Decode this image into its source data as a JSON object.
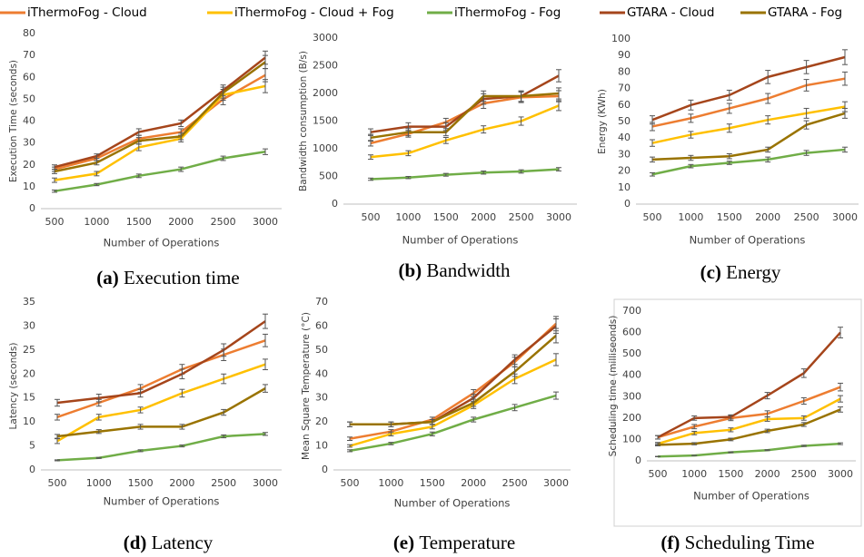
{
  "legend": [
    {
      "name": "iThermoFog - Cloud",
      "color": "#ed7d31"
    },
    {
      "name": "iThermoFog - Cloud + Fog",
      "color": "#ffc000"
    },
    {
      "name": "iThermoFog - Fog",
      "color": "#70ad47"
    },
    {
      "name": "GTARA - Cloud",
      "color": "#a5451b"
    },
    {
      "name": "GTARA - Fog",
      "color": "#997300"
    }
  ],
  "chart_data": [
    {
      "type": "line",
      "label": "(a)",
      "caption": "Execution time",
      "x_label": "Number of Operations",
      "y_label": "Execution Time (seconds)",
      "categories": [
        "500",
        "1000",
        "1500",
        "2000",
        "2500",
        "3000"
      ],
      "ylim": [
        0,
        80
      ],
      "yticks": [
        0,
        10,
        20,
        30,
        40,
        50,
        60,
        70,
        80
      ],
      "series": [
        {
          "values": [
            18,
            23,
            32,
            35,
            50,
            61
          ],
          "errors": [
            1,
            1,
            1.5,
            1.5,
            2.5,
            3
          ]
        },
        {
          "values": [
            13,
            16,
            28,
            32,
            52,
            56
          ],
          "errors": [
            1,
            1,
            1.5,
            1.5,
            2.5,
            3
          ]
        },
        {
          "values": [
            8,
            11,
            15,
            18,
            23,
            26
          ],
          "errors": [
            0.5,
            0.5,
            0.8,
            1,
            1,
            1.3
          ]
        },
        {
          "values": [
            19,
            24,
            35,
            39,
            54,
            69
          ],
          "errors": [
            1,
            1,
            1.5,
            1.5,
            2.5,
            3
          ]
        },
        {
          "values": [
            17,
            21,
            31,
            33,
            53,
            67
          ],
          "errors": [
            1,
            1,
            1.5,
            1.5,
            2.5,
            3
          ]
        }
      ]
    },
    {
      "type": "line",
      "label": "(b)",
      "caption": "Bandwidth",
      "x_label": "Number of Operations",
      "y_label": "Bandwidth consumption (B/s)",
      "categories": [
        "500",
        "1000",
        "1500",
        "2000",
        "2500",
        "3000"
      ],
      "ylim": [
        0,
        3000
      ],
      "yticks": [
        0,
        500,
        1000,
        1500,
        2000,
        2500,
        3000
      ],
      "series": [
        {
          "values": [
            1100,
            1270,
            1480,
            1820,
            1930,
            1950
          ],
          "errors": [
            50,
            60,
            70,
            90,
            95,
            100
          ]
        },
        {
          "values": [
            850,
            920,
            1150,
            1350,
            1500,
            1780
          ],
          "errors": [
            40,
            45,
            55,
            65,
            75,
            90
          ]
        },
        {
          "values": [
            450,
            480,
            530,
            570,
            590,
            630
          ],
          "errors": [
            20,
            20,
            25,
            28,
            30,
            30
          ]
        },
        {
          "values": [
            1300,
            1400,
            1400,
            1900,
            1950,
            2320
          ],
          "errors": [
            60,
            70,
            70,
            95,
            95,
            110
          ]
        },
        {
          "values": [
            1200,
            1300,
            1300,
            1950,
            1950,
            2000
          ],
          "errors": [
            60,
            65,
            65,
            95,
            95,
            100
          ]
        }
      ]
    },
    {
      "type": "line",
      "label": "(c)",
      "caption": "Energy",
      "x_label": "Number of Operations",
      "y_label": "Energy (KWh)",
      "categories": [
        "500",
        "1000",
        "1500",
        "2000",
        "2500",
        "3000"
      ],
      "ylim": [
        0,
        100
      ],
      "yticks": [
        0,
        10,
        20,
        30,
        40,
        50,
        60,
        70,
        80,
        90,
        100
      ],
      "series": [
        {
          "values": [
            47,
            52,
            58,
            64,
            72,
            76
          ],
          "errors": [
            2.5,
            2.5,
            3,
            3,
            3.5,
            4
          ]
        },
        {
          "values": [
            37,
            42,
            46,
            51,
            55,
            59
          ],
          "errors": [
            2,
            2,
            2.5,
            2.5,
            3,
            3
          ]
        },
        {
          "values": [
            18,
            23,
            25,
            27,
            31,
            33
          ],
          "errors": [
            1,
            1,
            1,
            1.5,
            1.5,
            1.5
          ]
        },
        {
          "values": [
            51,
            60,
            66,
            77,
            83,
            89
          ],
          "errors": [
            2.5,
            3,
            3,
            4,
            4,
            4.5
          ]
        },
        {
          "values": [
            27,
            28,
            29,
            33,
            48,
            55
          ],
          "errors": [
            1.5,
            1.5,
            1.5,
            1.5,
            2.5,
            3
          ]
        }
      ]
    },
    {
      "type": "line",
      "label": "(d)",
      "caption": "Latency",
      "x_label": "Number of Operations",
      "y_label": "Latency (seconds)",
      "categories": [
        "500",
        "1000",
        "1500",
        "2000",
        "2500",
        "3000"
      ],
      "ylim": [
        0,
        35
      ],
      "yticks": [
        0,
        5,
        10,
        15,
        20,
        25,
        30,
        35
      ],
      "series": [
        {
          "values": [
            11,
            14,
            17,
            21,
            24,
            27
          ],
          "errors": [
            0.6,
            0.7,
            0.8,
            1,
            1.2,
            1.3
          ]
        },
        {
          "values": [
            6,
            11,
            12.5,
            16,
            19,
            22
          ],
          "errors": [
            0.5,
            0.6,
            0.6,
            0.8,
            1,
            1.1
          ]
        },
        {
          "values": [
            2,
            2.5,
            4,
            5,
            7,
            7.5
          ],
          "errors": [
            0.1,
            0.1,
            0.2,
            0.2,
            0.3,
            0.3
          ]
        },
        {
          "values": [
            14,
            15,
            16,
            20,
            25,
            31
          ],
          "errors": [
            0.7,
            0.8,
            0.8,
            1,
            1.3,
            1.5
          ]
        },
        {
          "values": [
            7,
            8,
            9,
            9,
            12,
            17
          ],
          "errors": [
            0.4,
            0.4,
            0.5,
            0.5,
            0.6,
            0.8
          ]
        }
      ]
    },
    {
      "type": "line",
      "label": "(e)",
      "caption": "Temperature",
      "x_label": "Number of Operations",
      "y_label": "Mean Square Temperature (°C)",
      "categories": [
        "500",
        "1000",
        "1500",
        "2000",
        "2500",
        "3000"
      ],
      "ylim": [
        0,
        70
      ],
      "yticks": [
        0,
        10,
        20,
        30,
        40,
        50,
        60,
        70
      ],
      "series": [
        {
          "values": [
            13,
            16,
            21,
            32,
            45,
            61
          ],
          "errors": [
            0.7,
            0.8,
            1,
            1.5,
            2,
            3
          ]
        },
        {
          "values": [
            10,
            15,
            18,
            27,
            38,
            46
          ],
          "errors": [
            0.5,
            0.8,
            0.9,
            1.4,
            2,
            2.5
          ]
        },
        {
          "values": [
            8,
            11,
            15,
            21,
            26,
            31
          ],
          "errors": [
            0.4,
            0.5,
            0.8,
            1,
            1.3,
            1.5
          ]
        },
        {
          "values": [
            19,
            19,
            20,
            30,
            46,
            60
          ],
          "errors": [
            1,
            1,
            1,
            1.5,
            2,
            3
          ]
        },
        {
          "values": [
            19,
            19,
            20,
            28,
            41,
            56
          ],
          "errors": [
            1,
            1,
            1,
            1.5,
            2,
            3
          ]
        }
      ]
    },
    {
      "type": "line",
      "label": "(f)",
      "caption": "Scheduling Time",
      "x_label": "Number of Operations",
      "y_label": "Scheduling time (milliseonds)",
      "categories": [
        "500",
        "1000",
        "1500",
        "2000",
        "2500",
        "3000"
      ],
      "ylim": [
        0,
        700
      ],
      "yticks": [
        0,
        100,
        200,
        300,
        400,
        500,
        600,
        700
      ],
      "series": [
        {
          "values": [
            110,
            160,
            200,
            220,
            280,
            345
          ],
          "errors": [
            8,
            10,
            12,
            14,
            15,
            18
          ]
        },
        {
          "values": [
            80,
            130,
            145,
            195,
            200,
            290
          ],
          "errors": [
            6,
            8,
            9,
            10,
            10,
            15
          ]
        },
        {
          "values": [
            20,
            25,
            40,
            50,
            70,
            80
          ],
          "errors": [
            1,
            1,
            2,
            2,
            3,
            4
          ]
        },
        {
          "values": [
            110,
            200,
            205,
            305,
            410,
            600
          ],
          "errors": [
            8,
            10,
            10,
            15,
            20,
            25
          ]
        },
        {
          "values": [
            75,
            80,
            100,
            140,
            170,
            240
          ],
          "errors": [
            5,
            5,
            6,
            8,
            9,
            12
          ]
        }
      ]
    }
  ]
}
